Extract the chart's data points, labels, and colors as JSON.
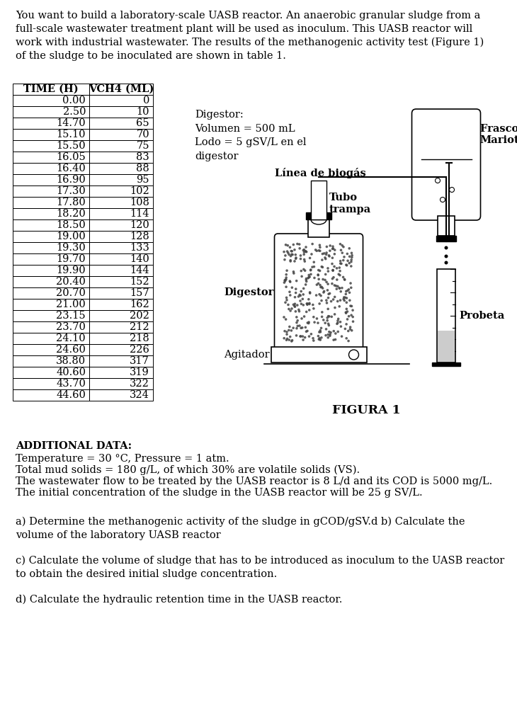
{
  "intro_text": "You want to build a laboratory-scale UASB reactor. An anaerobic granular sludge from a\nfull-scale wastewater treatment plant will be used as inoculum. This UASB reactor will\nwork with industrial wastewater. The results of the methanogenic activity test (Figure 1)\nof the sludge to be inoculated are shown in table 1.",
  "table_headers": [
    "TIME (H)",
    "VCH4 (ML)"
  ],
  "table_data": [
    [
      0.0,
      0
    ],
    [
      2.5,
      10
    ],
    [
      14.7,
      65
    ],
    [
      15.1,
      70
    ],
    [
      15.5,
      75
    ],
    [
      16.05,
      83
    ],
    [
      16.4,
      88
    ],
    [
      16.9,
      95
    ],
    [
      17.3,
      102
    ],
    [
      17.8,
      108
    ],
    [
      18.2,
      114
    ],
    [
      18.5,
      120
    ],
    [
      19.0,
      128
    ],
    [
      19.3,
      133
    ],
    [
      19.7,
      140
    ],
    [
      19.9,
      144
    ],
    [
      20.4,
      152
    ],
    [
      20.7,
      157
    ],
    [
      21.0,
      162
    ],
    [
      23.15,
      202
    ],
    [
      23.7,
      212
    ],
    [
      24.1,
      218
    ],
    [
      24.6,
      226
    ],
    [
      38.8,
      317
    ],
    [
      40.6,
      319
    ],
    [
      43.7,
      322
    ],
    [
      44.6,
      324
    ]
  ],
  "digestor_label": "Digestor:\nVolumen = 500 mL\nLodo = 5 gSV/L en el\ndigestor",
  "linea_biogas": "Línea de biogás",
  "tubo_trampa": "Tubo\ntrampa",
  "frasco_mariotte": "Frasco de\nMariotte",
  "digestor_arrow": "Digestor",
  "agitador": "Agitador",
  "probeta": "Probeta",
  "figura_caption": "FIGURA 1",
  "additional_data_title": "ADDITIONAL DATA:",
  "additional_data_lines": [
    "Temperature = 30 °C, Pressure = 1 atm.",
    "Total mud solids = 180 g/L, of which 30% are volatile solids (VS).",
    "The wastewater flow to be treated by the UASB reactor is 8 L/d and its COD is 5000 mg/L.",
    "The initial concentration of the sludge in the UASB reactor will be 25 g SV/L."
  ],
  "questions": [
    "a) Determine the methanogenic activity of the sludge in gCOD/gSV.d b) Calculate the\nvolume of the laboratory UASB reactor",
    "c) Calculate the volume of sludge that has to be introduced as inoculum to the UASB reactor\nto obtain the desired initial sludge concentration.",
    "d) Calculate the hydraulic retention time in the UASB reactor."
  ],
  "bg_color": "#ffffff",
  "text_color": "#000000",
  "font_size": 10.5
}
